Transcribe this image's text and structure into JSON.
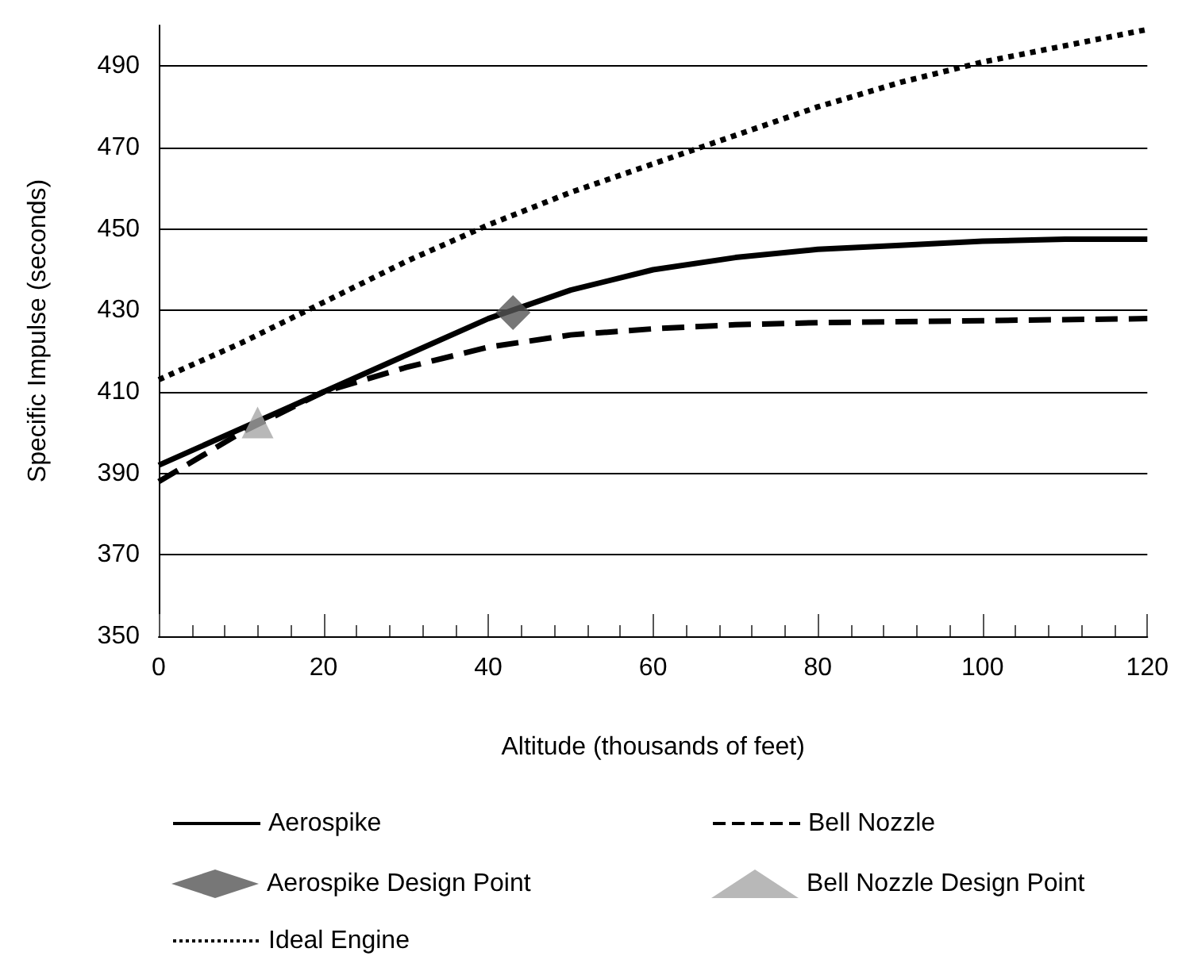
{
  "chart_data": {
    "type": "line",
    "xlabel": "Altitude (thousands of feet)",
    "ylabel": "Specific Impulse (seconds)",
    "xlim": [
      0,
      120
    ],
    "xticks": [
      0,
      20,
      40,
      60,
      80,
      100,
      120
    ],
    "ylim": [
      350,
      500
    ],
    "yticks": [
      350,
      370,
      390,
      410,
      430,
      450,
      470,
      490
    ],
    "grid": "y",
    "legend": "bottom",
    "series": [
      {
        "name": "Aerospike",
        "color": "#000000",
        "line_style": "solid",
        "marker": "none",
        "x": [
          0,
          10,
          20,
          30,
          40,
          50,
          60,
          70,
          80,
          90,
          100,
          110,
          120
        ],
        "values": [
          392,
          401,
          410,
          419,
          428,
          435,
          440,
          443,
          445,
          446,
          447,
          447.5,
          447.5
        ]
      },
      {
        "name": "Bell Nozzle",
        "color": "#000000",
        "line_style": "dashed",
        "marker": "none",
        "x": [
          0,
          10,
          20,
          30,
          40,
          50,
          60,
          70,
          80,
          100,
          120
        ],
        "values": [
          388,
          400,
          410,
          416,
          421,
          424,
          425.5,
          426.5,
          427,
          427.5,
          428
        ]
      },
      {
        "name": "Aerospike Design Point",
        "type": "scatter",
        "color": "#555555",
        "marker": "diamond",
        "x": [
          43
        ],
        "values": [
          429.5
        ]
      },
      {
        "name": "Bell Nozzle Design Point",
        "type": "scatter",
        "color": "#a6a6a6",
        "marker": "triangle",
        "x": [
          12
        ],
        "values": [
          402.5
        ]
      },
      {
        "name": "Ideal Engine",
        "color": "#000000",
        "line_style": "dotted",
        "marker": "none",
        "x": [
          0,
          10,
          20,
          30,
          40,
          50,
          60,
          70,
          80,
          90,
          100,
          110,
          120
        ],
        "values": [
          413,
          422,
          432,
          442,
          451,
          459,
          466,
          473,
          480,
          486,
          491,
          495,
          499
        ]
      }
    ]
  }
}
